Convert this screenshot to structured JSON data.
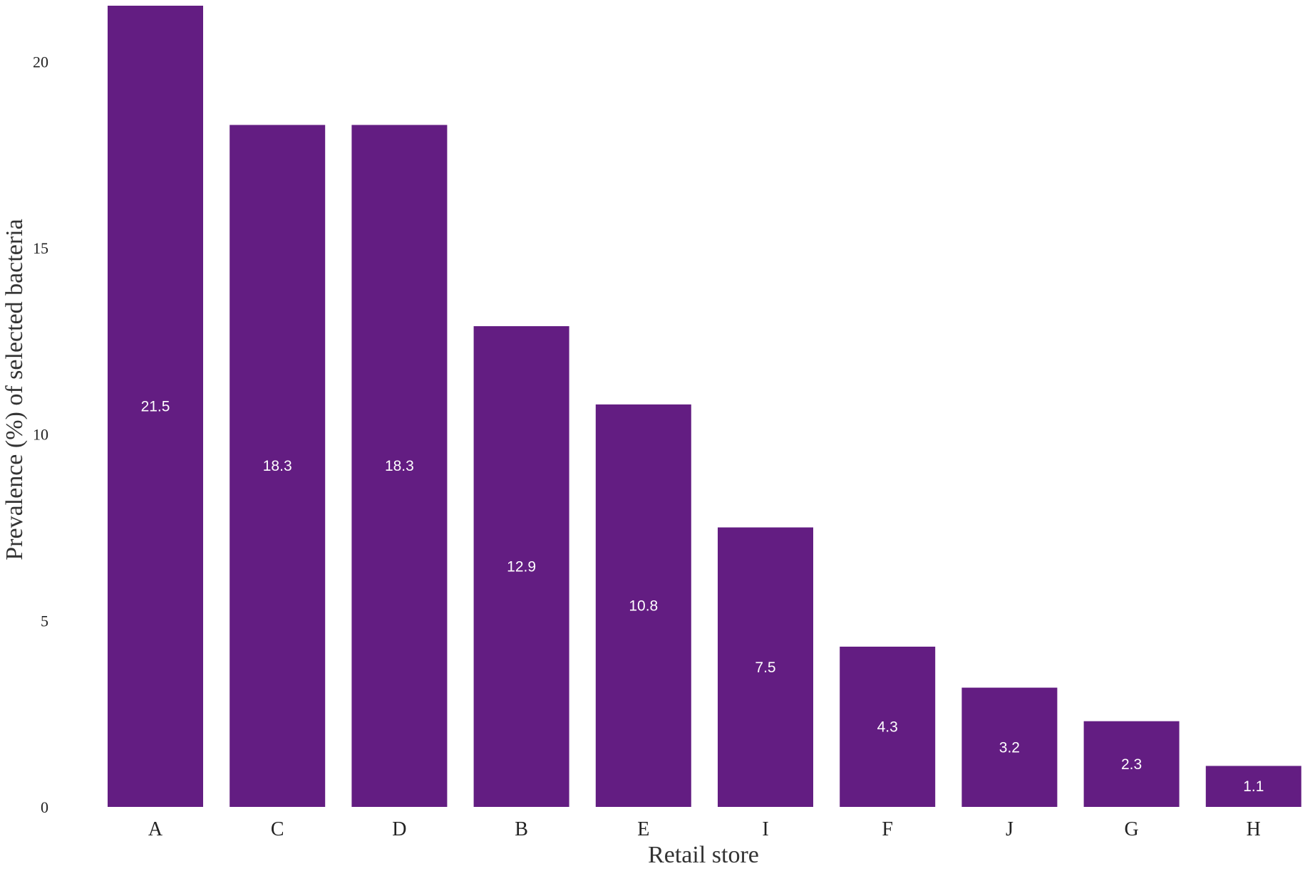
{
  "chart_data": {
    "type": "bar",
    "title": "",
    "xlabel": "Retail store",
    "ylabel": "Prevalence (%) of selected bacteria",
    "categories": [
      "A",
      "C",
      "D",
      "B",
      "E",
      "I",
      "F",
      "J",
      "G",
      "H"
    ],
    "values": [
      21.5,
      18.3,
      18.3,
      12.9,
      10.8,
      7.5,
      4.3,
      3.2,
      2.3,
      1.1
    ],
    "data_labels": [
      "21.5",
      "18.3",
      "18.3",
      "12.9",
      "10.8",
      "7.5",
      "4.3",
      "3.2",
      "2.3",
      "1.1"
    ],
    "ylim": [
      0,
      21.5
    ],
    "yticks": [
      0,
      5,
      10,
      15,
      20
    ],
    "ytick_labels": [
      "0",
      "5",
      "10",
      "15",
      "20"
    ],
    "grid": false,
    "legend": "none",
    "bar_color": "#631d82",
    "bar_label_color": "#ffffff"
  }
}
